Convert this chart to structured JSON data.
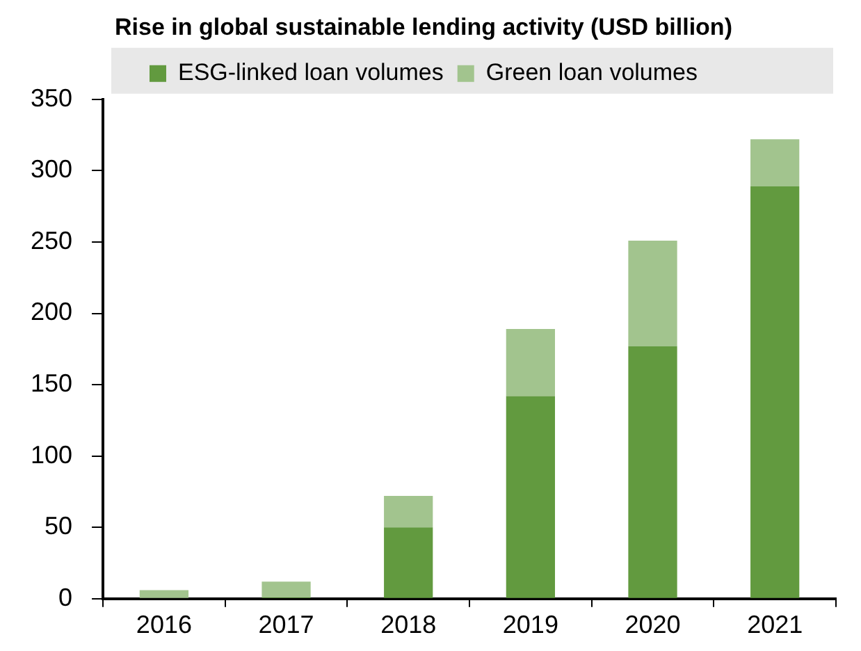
{
  "chart_data": {
    "type": "bar",
    "title": "Rise in global sustainable lending activity (USD billion)",
    "categories": [
      "2016",
      "2017",
      "2018",
      "2019",
      "2020",
      "2021"
    ],
    "stacked": true,
    "series": [
      {
        "name": "ESG-linked loan volumes",
        "color": "#629a3f",
        "values": [
          0,
          1,
          50,
          142,
          177,
          289
        ]
      },
      {
        "name": "Green loan volumes",
        "color": "#a2c48e",
        "values": [
          6,
          11,
          22,
          47,
          74,
          33
        ]
      }
    ],
    "ylim": [
      0,
      350
    ],
    "yticks": [
      0,
      50,
      100,
      150,
      200,
      250,
      300,
      350
    ],
    "grid": false,
    "legend": "top"
  }
}
